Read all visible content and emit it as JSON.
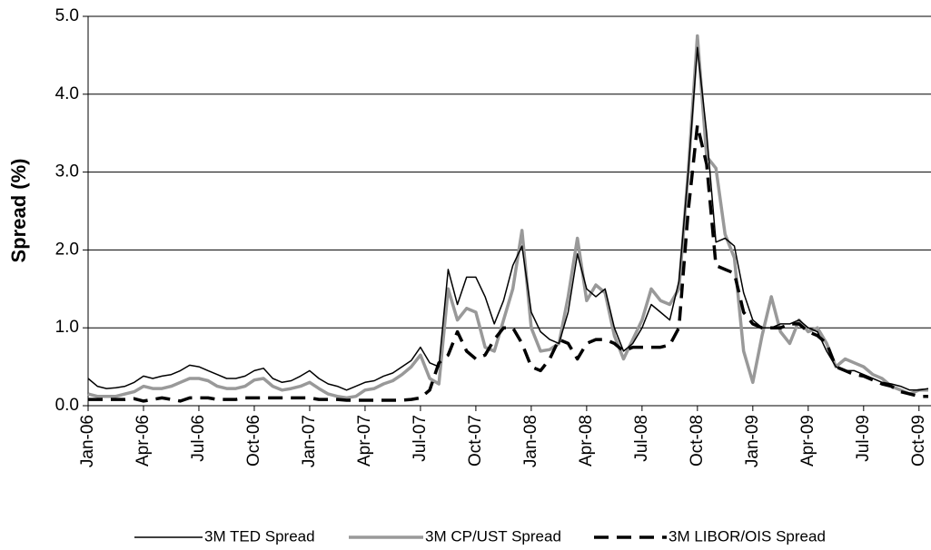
{
  "chart_data": {
    "type": "line",
    "y_label": "Spread (%)",
    "categories": [
      "Jan-06",
      null,
      null,
      null,
      null,
      null,
      "Apr-06",
      null,
      null,
      null,
      null,
      null,
      "Jul-06",
      null,
      null,
      null,
      null,
      null,
      "Oct-06",
      null,
      null,
      null,
      null,
      null,
      "Jan-07",
      null,
      null,
      null,
      null,
      null,
      "Apr-07",
      null,
      null,
      null,
      null,
      null,
      "Jul-07",
      null,
      null,
      null,
      null,
      null,
      "Oct-07",
      null,
      null,
      null,
      null,
      null,
      "Jan-08",
      null,
      null,
      null,
      null,
      null,
      "Apr-08",
      null,
      null,
      null,
      null,
      null,
      "Jul-08",
      null,
      null,
      null,
      null,
      null,
      "Oct-08",
      null,
      null,
      null,
      null,
      null,
      "Jan-09",
      null,
      null,
      null,
      null,
      null,
      "Apr-09",
      null,
      null,
      null,
      null,
      null,
      "Jul-09",
      null,
      null,
      null,
      null,
      null,
      "Oct-09",
      null
    ],
    "series": [
      {
        "name": "3M TED Spread",
        "color": "#000000",
        "values": [
          0.35,
          0.25,
          0.22,
          0.23,
          0.25,
          0.3,
          0.38,
          0.35,
          0.38,
          0.4,
          0.45,
          0.52,
          0.5,
          0.45,
          0.4,
          0.35,
          0.35,
          0.38,
          0.45,
          0.48,
          0.35,
          0.3,
          0.32,
          0.38,
          0.45,
          0.35,
          0.28,
          0.25,
          0.2,
          0.25,
          0.3,
          0.32,
          0.38,
          0.42,
          0.5,
          0.58,
          0.75,
          0.55,
          0.5,
          1.75,
          1.3,
          1.65,
          1.65,
          1.4,
          1.05,
          1.35,
          1.8,
          2.05,
          1.2,
          0.95,
          0.85,
          0.8,
          1.2,
          1.95,
          1.5,
          1.4,
          1.5,
          1.0,
          0.7,
          0.8,
          1.0,
          1.3,
          1.2,
          1.1,
          1.6,
          3.0,
          4.6,
          3.5,
          2.1,
          2.15,
          2.05,
          1.45,
          1.1,
          1.0,
          1.0,
          1.05,
          1.05,
          1.1,
          1.0,
          0.95,
          0.7,
          0.5,
          0.45,
          0.45,
          0.4,
          0.35,
          0.3,
          0.28,
          0.25,
          0.2,
          0.2,
          0.22
        ]
      },
      {
        "name": "3M CP/UST Spread",
        "color": "#999999",
        "values": [
          0.15,
          0.12,
          0.12,
          0.12,
          0.15,
          0.18,
          0.25,
          0.22,
          0.22,
          0.25,
          0.3,
          0.35,
          0.35,
          0.32,
          0.25,
          0.22,
          0.22,
          0.25,
          0.33,
          0.35,
          0.25,
          0.2,
          0.22,
          0.25,
          0.3,
          0.22,
          0.15,
          0.12,
          0.1,
          0.12,
          0.2,
          0.22,
          0.28,
          0.32,
          0.4,
          0.5,
          0.65,
          0.35,
          0.28,
          1.5,
          1.1,
          1.25,
          1.2,
          0.75,
          0.7,
          1.1,
          1.5,
          2.25,
          1.0,
          0.7,
          0.72,
          0.8,
          1.4,
          2.15,
          1.35,
          1.55,
          1.45,
          0.9,
          0.6,
          0.85,
          1.1,
          1.5,
          1.35,
          1.3,
          1.5,
          3.0,
          4.75,
          3.2,
          3.05,
          2.2,
          1.9,
          0.7,
          0.3,
          0.9,
          1.4,
          0.95,
          0.8,
          1.1,
          0.95,
          1.0,
          0.8,
          0.5,
          0.6,
          0.55,
          0.5,
          0.4,
          0.35,
          0.25,
          0.2,
          0.15,
          0.2,
          0.2
        ]
      },
      {
        "name": "3M LIBOR/OIS Spread",
        "color": "#000000",
        "dashed": true,
        "values": [
          0.08,
          0.08,
          0.08,
          0.08,
          0.08,
          0.09,
          0.06,
          0.08,
          0.1,
          0.08,
          0.06,
          0.1,
          0.1,
          0.1,
          0.08,
          0.08,
          0.08,
          0.1,
          0.1,
          0.1,
          0.1,
          0.1,
          0.1,
          0.1,
          0.1,
          0.08,
          0.08,
          0.08,
          0.07,
          0.07,
          0.07,
          0.07,
          0.07,
          0.07,
          0.07,
          0.08,
          0.1,
          0.2,
          0.55,
          0.65,
          0.95,
          0.7,
          0.6,
          0.65,
          0.85,
          1.0,
          1.0,
          0.8,
          0.5,
          0.45,
          0.6,
          0.85,
          0.8,
          0.6,
          0.8,
          0.85,
          0.85,
          0.8,
          0.7,
          0.75,
          0.75,
          0.75,
          0.75,
          0.78,
          1.0,
          2.5,
          3.6,
          3.1,
          1.8,
          1.75,
          1.7,
          1.2,
          1.05,
          1.0,
          1.0,
          1.0,
          1.05,
          1.05,
          0.95,
          0.9,
          0.8,
          0.5,
          0.45,
          0.4,
          0.38,
          0.33,
          0.28,
          0.25,
          0.18,
          0.15,
          0.12,
          0.12
        ]
      }
    ],
    "ylim": [
      0,
      5
    ],
    "yticks": [
      {
        "value": 0,
        "label": "0.0"
      },
      {
        "value": 1,
        "label": "1.0"
      },
      {
        "value": 2,
        "label": "2.0"
      },
      {
        "value": 3,
        "label": "3.0"
      },
      {
        "value": 4,
        "label": "4.0"
      },
      {
        "value": 5,
        "label": "5.0"
      }
    ],
    "grid": true,
    "legend": "bottom"
  }
}
